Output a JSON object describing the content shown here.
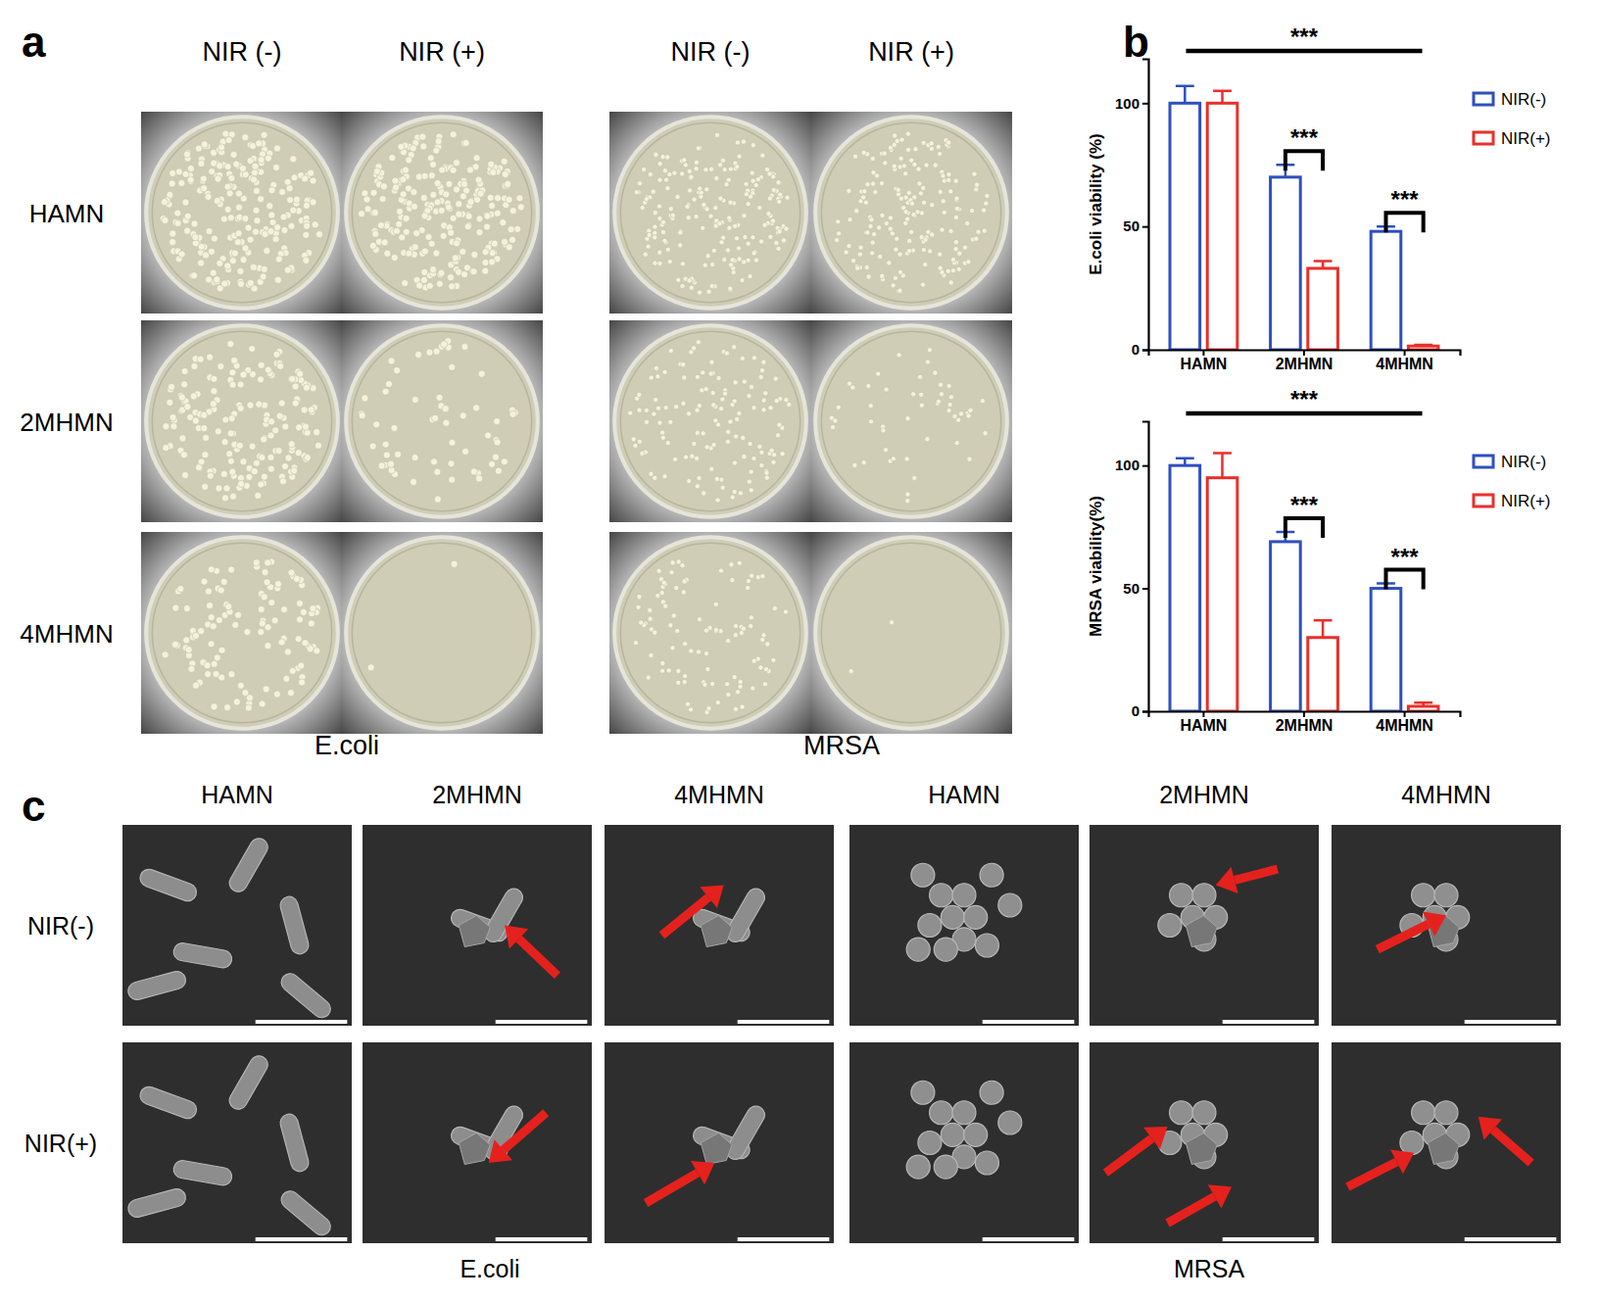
{
  "chart_data": [
    {
      "type": "bar",
      "y_label": "E.coli viability (%)",
      "categories": [
        "HAMN",
        "2MHMN",
        "4MHMN"
      ],
      "series": [
        {
          "name": "NIR(-)",
          "color": "#2f4fbf",
          "values": [
            100,
            70,
            48
          ],
          "errors": [
            7,
            5,
            2
          ]
        },
        {
          "name": "NIR(+)",
          "color": "#e8302a",
          "values": [
            100,
            33,
            1.5
          ],
          "errors": [
            5,
            3,
            0.5
          ]
        }
      ],
      "ylim": [
        0,
        118
      ],
      "yticks": [
        0,
        50,
        100
      ],
      "legend": "upper right",
      "annotations": [
        {
          "text": "***",
          "groups": [
            0,
            2
          ]
        },
        {
          "text": "***",
          "groups": [
            1
          ]
        },
        {
          "text": "***",
          "groups": [
            2
          ]
        }
      ]
    },
    {
      "type": "bar",
      "y_label": "MRSA viability(%)",
      "categories": [
        "HAMN",
        "2MHMN",
        "4MHMN"
      ],
      "series": [
        {
          "name": "NIR(-)",
          "color": "#2f4fbf",
          "values": [
            100,
            69,
            50
          ],
          "errors": [
            3,
            4,
            2
          ]
        },
        {
          "name": "NIR(+)",
          "color": "#e8302a",
          "values": [
            95,
            30,
            2
          ],
          "errors": [
            10,
            7,
            1.5
          ]
        }
      ],
      "ylim": [
        0,
        118
      ],
      "yticks": [
        0,
        50,
        100
      ],
      "legend": "upper right",
      "annotations": [
        {
          "text": "***",
          "groups": [
            0,
            2
          ]
        },
        {
          "text": "***",
          "groups": [
            1
          ]
        },
        {
          "text": "***",
          "groups": [
            2
          ]
        }
      ]
    }
  ],
  "figure": {
    "panel_labels": [
      "a",
      "b",
      "c"
    ],
    "plates": {
      "columns": [
        "NIR (-)",
        "NIR (+)",
        "NIR (-)",
        "NIR (+)"
      ],
      "rows": [
        "HAMN",
        "2MHMN",
        "4MHMN"
      ],
      "groups": [
        "E.coli",
        "MRSA"
      ]
    },
    "sem": {
      "columns": [
        "HAMN",
        "2MHMN",
        "4MHMN",
        "HAMN",
        "2MHMN",
        "4MHMN"
      ],
      "rows": [
        "NIR(-)",
        "NIR(+)"
      ],
      "groups": [
        "E.coli",
        "MRSA"
      ]
    }
  }
}
